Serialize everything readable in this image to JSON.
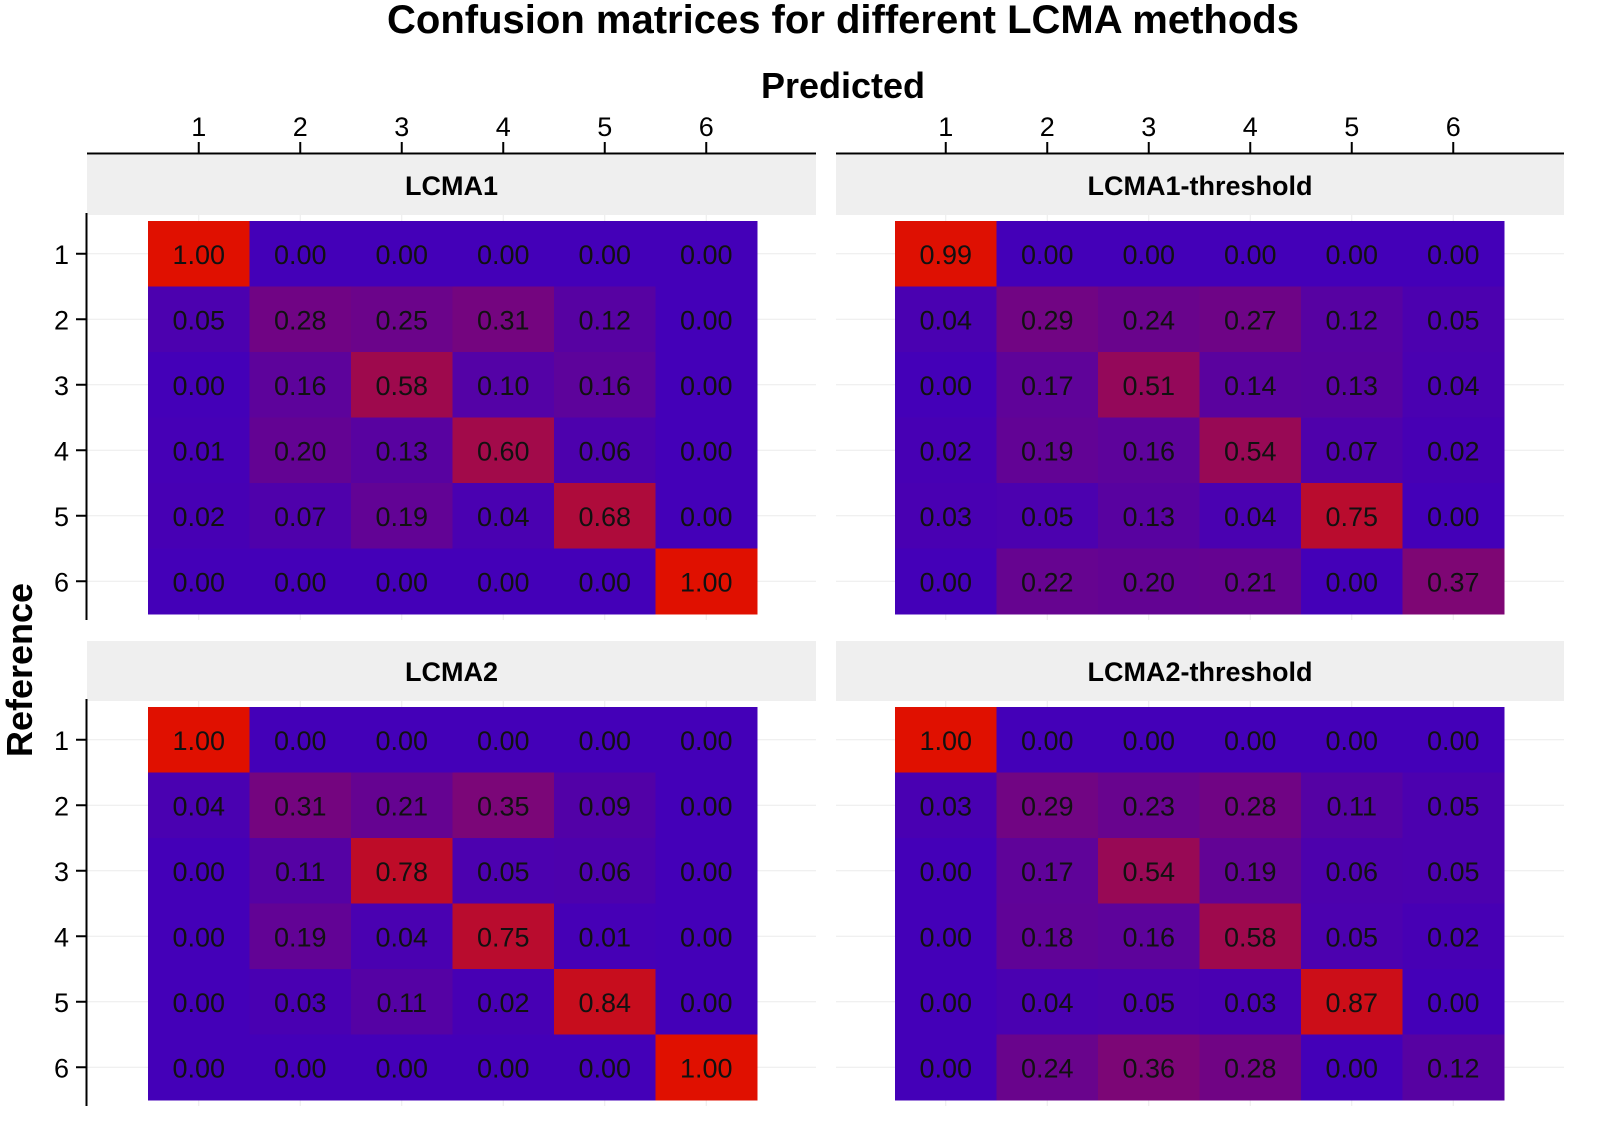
{
  "chart_data": {
    "type": "heatmap",
    "title": "Confusion matrices for different LCMA methods",
    "xlabel": "Predicted",
    "ylabel": "Reference",
    "x_categories": [
      "1",
      "2",
      "3",
      "4",
      "5",
      "6"
    ],
    "y_categories": [
      "1",
      "2",
      "3",
      "4",
      "5",
      "6"
    ],
    "color_low": "#4400b8",
    "color_high": "#e01000",
    "value_range": [
      0,
      1
    ],
    "panels": [
      {
        "name": "LCMA1",
        "values": [
          [
            "1.00",
            "0.00",
            "0.00",
            "0.00",
            "0.00",
            "0.00"
          ],
          [
            "0.05",
            "0.28",
            "0.25",
            "0.31",
            "0.12",
            "0.00"
          ],
          [
            "0.00",
            "0.16",
            "0.58",
            "0.10",
            "0.16",
            "0.00"
          ],
          [
            "0.01",
            "0.20",
            "0.13",
            "0.60",
            "0.06",
            "0.00"
          ],
          [
            "0.02",
            "0.07",
            "0.19",
            "0.04",
            "0.68",
            "0.00"
          ],
          [
            "0.00",
            "0.00",
            "0.00",
            "0.00",
            "0.00",
            "1.00"
          ]
        ]
      },
      {
        "name": "LCMA1-threshold",
        "values": [
          [
            "0.99",
            "0.00",
            "0.00",
            "0.00",
            "0.00",
            "0.00"
          ],
          [
            "0.04",
            "0.29",
            "0.24",
            "0.27",
            "0.12",
            "0.05"
          ],
          [
            "0.00",
            "0.17",
            "0.51",
            "0.14",
            "0.13",
            "0.04"
          ],
          [
            "0.02",
            "0.19",
            "0.16",
            "0.54",
            "0.07",
            "0.02"
          ],
          [
            "0.03",
            "0.05",
            "0.13",
            "0.04",
            "0.75",
            "0.00"
          ],
          [
            "0.00",
            "0.22",
            "0.20",
            "0.21",
            "0.00",
            "0.37"
          ]
        ]
      },
      {
        "name": "LCMA2",
        "values": [
          [
            "1.00",
            "0.00",
            "0.00",
            "0.00",
            "0.00",
            "0.00"
          ],
          [
            "0.04",
            "0.31",
            "0.21",
            "0.35",
            "0.09",
            "0.00"
          ],
          [
            "0.00",
            "0.11",
            "0.78",
            "0.05",
            "0.06",
            "0.00"
          ],
          [
            "0.00",
            "0.19",
            "0.04",
            "0.75",
            "0.01",
            "0.00"
          ],
          [
            "0.00",
            "0.03",
            "0.11",
            "0.02",
            "0.84",
            "0.00"
          ],
          [
            "0.00",
            "0.00",
            "0.00",
            "0.00",
            "0.00",
            "1.00"
          ]
        ]
      },
      {
        "name": "LCMA2-threshold",
        "values": [
          [
            "1.00",
            "0.00",
            "0.00",
            "0.00",
            "0.00",
            "0.00"
          ],
          [
            "0.03",
            "0.29",
            "0.23",
            "0.28",
            "0.11",
            "0.05"
          ],
          [
            "0.00",
            "0.17",
            "0.54",
            "0.19",
            "0.06",
            "0.05"
          ],
          [
            "0.00",
            "0.18",
            "0.16",
            "0.58",
            "0.05",
            "0.02"
          ],
          [
            "0.00",
            "0.04",
            "0.05",
            "0.03",
            "0.87",
            "0.00"
          ],
          [
            "0.00",
            "0.24",
            "0.36",
            "0.28",
            "0.00",
            "0.12"
          ]
        ]
      }
    ]
  }
}
